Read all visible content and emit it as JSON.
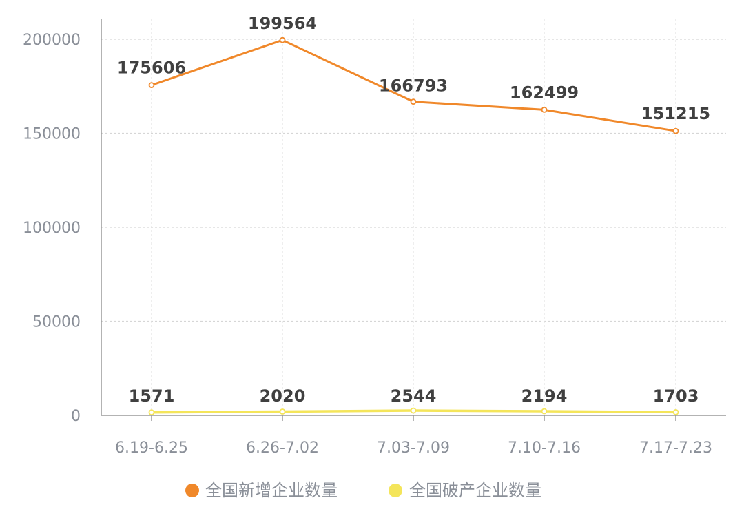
{
  "chart_data": {
    "type": "line",
    "categories": [
      "6.19-6.25",
      "6.26-7.02",
      "7.03-7.09",
      "7.10-7.16",
      "7.17-7.23"
    ],
    "series": [
      {
        "name": "全国新增企业数量",
        "values": [
          175606,
          199564,
          166793,
          162499,
          151215
        ],
        "color": "#f0882a"
      },
      {
        "name": "全国破产企业数量",
        "values": [
          1571,
          2020,
          2544,
          2194,
          1703
        ],
        "color": "#f4e55a"
      }
    ],
    "ylim": [
      0,
      200000
    ],
    "yticks": [
      "0",
      "50000",
      "100000",
      "150000",
      "200000"
    ],
    "grid": true,
    "legend_position": "bottom-center",
    "title": "",
    "xlabel": "",
    "ylabel": ""
  }
}
